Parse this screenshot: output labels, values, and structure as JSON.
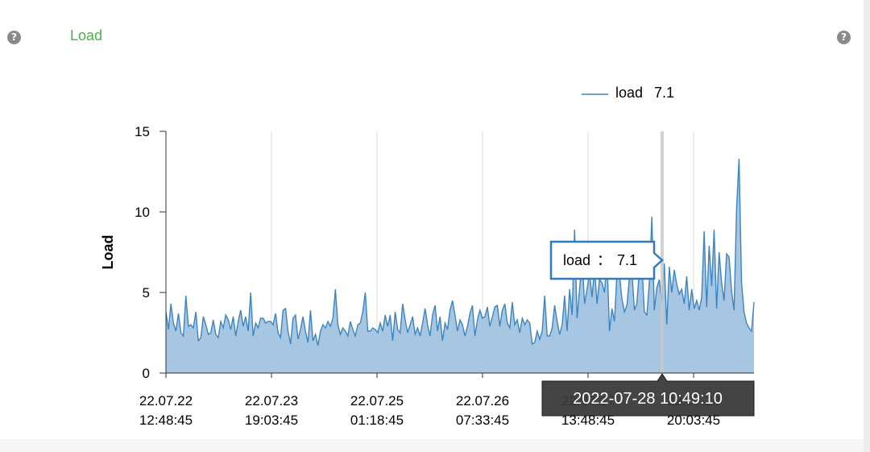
{
  "panel": {
    "title": "Load",
    "help_icon": "question-circle-icon",
    "help_glyph": "?"
  },
  "colors": {
    "line": "#3d85c0",
    "area": "#a7c6e2",
    "title": "#4cae4c",
    "grid": "#dcdcdc",
    "crosshair": "#c8c8c8",
    "tooltip_border": "#2f7bbd",
    "xtip_bg": "#3a3a3a"
  },
  "tooltip": {
    "series_label": "load",
    "separator": "：",
    "value": "7.1",
    "x_label": "2022-07-28 10:49:10"
  },
  "chart_data": {
    "type": "area",
    "ylabel": "Load",
    "ylim": [
      0,
      15
    ],
    "yticks": [
      "0",
      "5",
      "10",
      "15"
    ],
    "xticks": [
      {
        "date": "22.07.22",
        "time": "12:48:45"
      },
      {
        "date": "22.07.23",
        "time": "19:03:45"
      },
      {
        "date": "22.07.25",
        "time": "01:18:45"
      },
      {
        "date": "22.07.26",
        "time": "07:33:45"
      },
      {
        "date": "22.07.27",
        "time": "13:48:45"
      },
      {
        "date": "22.07.28",
        "time": "20:03:45"
      }
    ],
    "grid": "vertical",
    "legend_position": "top-right",
    "series": [
      {
        "name": "load",
        "legend_value": "7.1",
        "values": [
          3.8,
          2.7,
          4.3,
          3.1,
          2.6,
          3.7,
          2.5,
          2.3,
          4.8,
          2.9,
          3.0,
          2.8,
          3.8,
          2.0,
          2.2,
          3.5,
          3.0,
          2.4,
          2.5,
          3.3,
          2.4,
          2.2,
          3.2,
          2.8,
          3.6,
          3.3,
          2.7,
          3.5,
          2.3,
          3.2,
          3.9,
          2.9,
          3.5,
          2.6,
          5.0,
          2.3,
          3.1,
          2.8,
          3.4,
          3.4,
          3.1,
          3.2,
          3.2,
          3.0,
          3.7,
          2.5,
          2.2,
          3.9,
          4.0,
          2.6,
          1.8,
          3.4,
          3.6,
          2.1,
          2.7,
          3.5,
          2.6,
          1.9,
          3.9,
          2.0,
          2.4,
          1.7,
          2.6,
          3.0,
          2.8,
          3.2,
          2.9,
          3.4,
          5.2,
          3.0,
          2.4,
          2.8,
          2.6,
          2.3,
          3.2,
          2.7,
          2.3,
          3.0,
          3.1,
          3.8,
          5.0,
          2.6,
          2.6,
          2.8,
          2.7,
          2.5,
          3.1,
          2.6,
          3.6,
          2.9,
          3.6,
          2.0,
          3.8,
          2.7,
          2.5,
          4.3,
          3.3,
          2.5,
          3.0,
          3.5,
          2.4,
          2.8,
          2.3,
          3.1,
          4.0,
          3.0,
          2.3,
          3.6,
          4.2,
          2.6,
          3.5,
          2.0,
          3.1,
          2.7,
          3.9,
          4.5,
          3.6,
          2.6,
          3.3,
          3.0,
          2.3,
          2.9,
          3.7,
          4.2,
          2.3,
          3.3,
          3.9,
          3.4,
          3.5,
          4.1,
          2.9,
          3.5,
          4.1,
          4.2,
          2.9,
          3.9,
          4.3,
          3.1,
          2.8,
          4.4,
          3.0,
          3.3,
          2.5,
          3.4,
          3.0,
          3.3,
          3.1,
          1.8,
          1.9,
          2.6,
          2.1,
          2.6,
          4.8,
          2.3,
          2.3,
          2.8,
          4.2,
          3.2,
          2.4,
          3.0,
          4.8,
          2.6,
          5.2,
          3.6,
          8.9,
          3.4,
          5.2,
          7.2,
          4.3,
          5.2,
          6.2,
          4.7,
          6.5,
          4.3,
          5.8,
          5.6,
          5.0,
          7.1,
          2.6,
          4.0,
          3.2,
          6.2,
          6.1,
          4.6,
          3.8,
          4.2,
          5.9,
          6.3,
          3.9,
          4.3,
          6.4,
          6.7,
          3.8,
          3.6,
          5.6,
          9.7,
          3.9,
          5.3,
          5.8,
          4.4,
          6.8,
          3.0,
          6.6,
          5.0,
          6.4,
          5.5,
          4.9,
          5.2,
          4.3,
          6.0,
          3.9,
          5.2,
          4.0,
          4.5,
          3.9,
          4.7,
          8.8,
          4.1,
          7.9,
          5.4,
          8.9,
          4.0,
          7.5,
          5.6,
          4.5,
          7.4,
          7.2,
          5.1,
          3.9,
          10.2,
          13.3,
          5.6,
          3.8,
          3.1,
          2.8,
          2.6,
          4.4
        ]
      }
    ],
    "highlight": {
      "x": "2022-07-28 10:49:10",
      "y": 7.1
    }
  }
}
